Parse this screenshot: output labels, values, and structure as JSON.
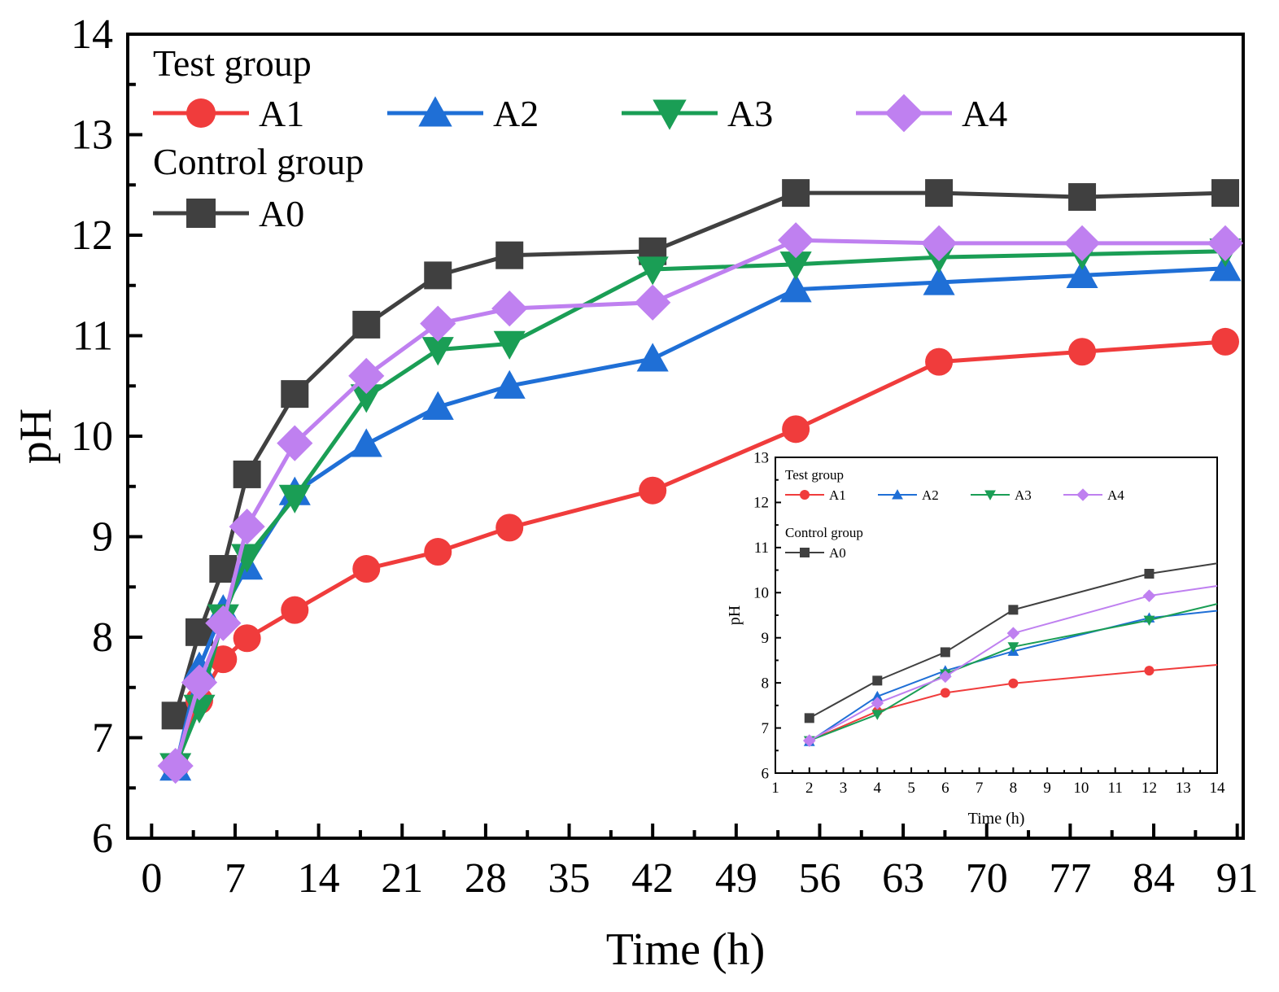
{
  "chart_data": [
    {
      "id": "main",
      "type": "line",
      "xlabel": "Time (h)",
      "ylabel": "pH",
      "xlim": [
        -2,
        91.5
      ],
      "ylim": [
        6,
        14
      ],
      "xticks": [
        0,
        7,
        14,
        21,
        28,
        35,
        42,
        49,
        56,
        63,
        70,
        77,
        84,
        91
      ],
      "yticks": [
        6,
        7,
        8,
        9,
        10,
        11,
        12,
        13,
        14
      ],
      "legend": {
        "position": "top-left",
        "test_group_title": "Test group",
        "control_group_title": "Control group"
      },
      "x": [
        2,
        4,
        6,
        8,
        12,
        18,
        24,
        30,
        42,
        54,
        66,
        78,
        90
      ],
      "series": [
        {
          "name": "A0",
          "group": "control",
          "color": "#404040",
          "marker": "square",
          "values": [
            7.22,
            8.05,
            8.68,
            9.62,
            10.42,
            11.11,
            11.6,
            11.8,
            11.84,
            12.42,
            12.42,
            12.38,
            12.42
          ]
        },
        {
          "name": "A1",
          "group": "test",
          "color": "#f03c3c",
          "marker": "circle",
          "values": [
            6.72,
            7.37,
            7.78,
            7.99,
            8.27,
            8.68,
            8.85,
            9.09,
            9.46,
            10.07,
            10.74,
            10.84,
            10.94
          ]
        },
        {
          "name": "A2",
          "group": "test",
          "color": "#1f6fd6",
          "marker": "triangle-up",
          "values": [
            6.7,
            7.7,
            8.27,
            8.7,
            9.44,
            9.92,
            10.29,
            10.5,
            10.77,
            11.46,
            11.53,
            11.6,
            11.67
          ]
        },
        {
          "name": "A3",
          "group": "test",
          "color": "#1a9e55",
          "marker": "triangle-down",
          "values": [
            6.72,
            7.3,
            8.2,
            8.8,
            9.39,
            10.39,
            10.86,
            10.92,
            11.66,
            11.71,
            11.78,
            11.81,
            11.84
          ]
        },
        {
          "name": "A4",
          "group": "test",
          "color": "#bf80f0",
          "marker": "diamond",
          "values": [
            6.72,
            7.55,
            8.14,
            9.1,
            9.93,
            10.6,
            11.12,
            11.27,
            11.33,
            11.95,
            11.92,
            11.92,
            11.92
          ]
        }
      ]
    },
    {
      "id": "inset",
      "type": "line",
      "xlabel": "Time (h)",
      "ylabel": "pH",
      "xlim": [
        1,
        14
      ],
      "ylim": [
        6,
        13
      ],
      "xticks": [
        1,
        2,
        3,
        4,
        5,
        6,
        7,
        8,
        9,
        10,
        11,
        12,
        13,
        14
      ],
      "yticks": [
        6,
        7,
        8,
        9,
        10,
        11,
        12,
        13
      ],
      "legend": {
        "position": "top-left",
        "test_group_title": "Test group",
        "control_group_title": "Control group"
      },
      "x": [
        2,
        4,
        6,
        8,
        12,
        14
      ],
      "series": [
        {
          "name": "A0",
          "group": "control",
          "color": "#404040",
          "marker": "square",
          "values": [
            7.22,
            8.05,
            8.68,
            9.62,
            10.42,
            10.65
          ],
          "markers_until_x": 12
        },
        {
          "name": "A1",
          "group": "test",
          "color": "#f03c3c",
          "marker": "circle",
          "values": [
            6.72,
            7.37,
            7.78,
            7.99,
            8.27,
            8.4
          ],
          "markers_until_x": 12
        },
        {
          "name": "A2",
          "group": "test",
          "color": "#1f6fd6",
          "marker": "triangle-up",
          "values": [
            6.7,
            7.7,
            8.27,
            8.7,
            9.44,
            9.6
          ],
          "markers_until_x": 12
        },
        {
          "name": "A3",
          "group": "test",
          "color": "#1a9e55",
          "marker": "triangle-down",
          "values": [
            6.72,
            7.3,
            8.2,
            8.8,
            9.39,
            9.75
          ],
          "markers_until_x": 12
        },
        {
          "name": "A4",
          "group": "test",
          "color": "#bf80f0",
          "marker": "diamond",
          "values": [
            6.72,
            7.55,
            8.14,
            9.1,
            9.93,
            10.15
          ],
          "markers_until_x": 12
        }
      ]
    }
  ]
}
